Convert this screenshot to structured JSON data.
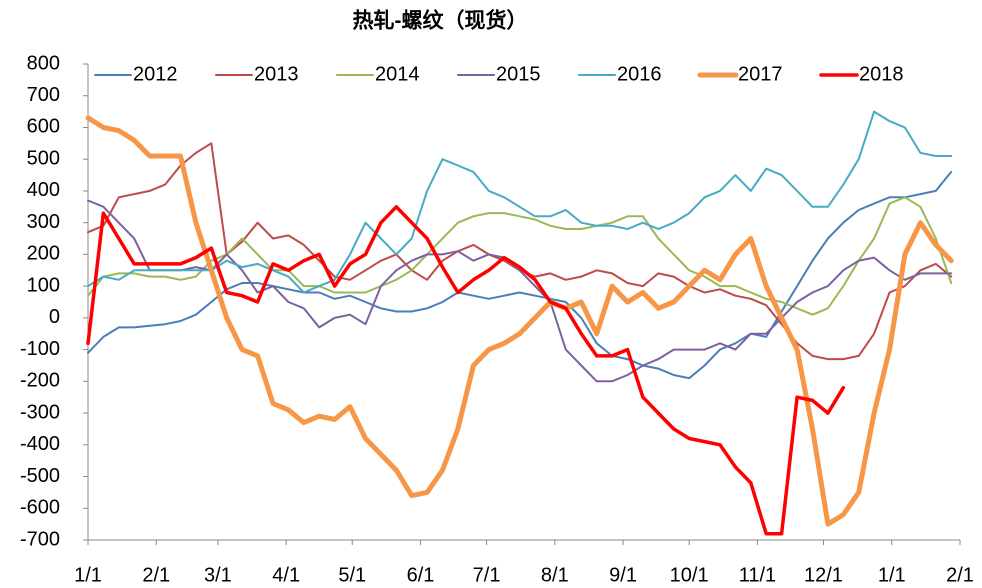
{
  "chart_data": {
    "type": "line",
    "title": "热轧-螺纹（现货）",
    "x": [
      0,
      7,
      14,
      21,
      28,
      35,
      42,
      49,
      56,
      63,
      70,
      77,
      84,
      91,
      98,
      105,
      112,
      119,
      126,
      133,
      140,
      147,
      154,
      161,
      168,
      175,
      182,
      189,
      196,
      203,
      210,
      217,
      224,
      231,
      238,
      245,
      252,
      259,
      266,
      273,
      280,
      287,
      294,
      301,
      308,
      315,
      322,
      329,
      336,
      343,
      350,
      357,
      364,
      371,
      378,
      385,
      392
    ],
    "xlim": [
      0,
      396
    ],
    "xticks": [
      {
        "value": 0,
        "label": "1/1"
      },
      {
        "value": 31,
        "label": "2/1"
      },
      {
        "value": 59,
        "label": "3/1"
      },
      {
        "value": 90,
        "label": "4/1"
      },
      {
        "value": 120,
        "label": "5/1"
      },
      {
        "value": 151,
        "label": "6/1"
      },
      {
        "value": 181,
        "label": "7/1"
      },
      {
        "value": 212,
        "label": "8/1"
      },
      {
        "value": 243,
        "label": "9/1"
      },
      {
        "value": 273,
        "label": "10/1"
      },
      {
        "value": 304,
        "label": "11/1"
      },
      {
        "value": 334,
        "label": "12/1"
      },
      {
        "value": 365,
        "label": "1/1"
      },
      {
        "value": 396,
        "label": "2/1"
      }
    ],
    "ylim": [
      -700,
      800
    ],
    "yticks": [
      800,
      700,
      600,
      500,
      400,
      300,
      200,
      100,
      0,
      -100,
      -200,
      -300,
      -400,
      -500,
      -600,
      -700
    ],
    "grid": false,
    "legend": "top",
    "series": [
      {
        "name": "2012",
        "color": "#4a7ebb",
        "width": 2,
        "values": [
          -110,
          -60,
          -30,
          -30,
          -25,
          -20,
          -10,
          10,
          50,
          90,
          110,
          110,
          100,
          90,
          80,
          80,
          60,
          70,
          50,
          30,
          20,
          20,
          30,
          50,
          80,
          70,
          60,
          70,
          80,
          70,
          60,
          50,
          0,
          -80,
          -120,
          -130,
          -150,
          -160,
          -180,
          -190,
          -150,
          -100,
          -80,
          -50,
          -60,
          20,
          100,
          180,
          250,
          300,
          340,
          360,
          380,
          380,
          390,
          400,
          460
        ]
      },
      {
        "name": "2013",
        "color": "#be4b48",
        "width": 2,
        "values": [
          270,
          290,
          380,
          390,
          400,
          420,
          480,
          520,
          550,
          200,
          240,
          300,
          250,
          260,
          230,
          180,
          130,
          120,
          150,
          180,
          200,
          150,
          120,
          180,
          210,
          230,
          200,
          180,
          150,
          130,
          140,
          120,
          130,
          150,
          140,
          110,
          100,
          140,
          130,
          100,
          80,
          90,
          70,
          60,
          40,
          -20,
          -80,
          -120,
          -130,
          -130,
          -120,
          -50,
          80,
          100,
          150,
          170,
          130
        ]
      },
      {
        "name": "2014",
        "color": "#98b954",
        "width": 2,
        "values": [
          70,
          130,
          140,
          140,
          130,
          130,
          120,
          130,
          180,
          200,
          250,
          200,
          150,
          150,
          100,
          100,
          80,
          80,
          80,
          100,
          120,
          150,
          200,
          250,
          300,
          320,
          330,
          330,
          320,
          310,
          290,
          280,
          280,
          290,
          300,
          320,
          320,
          250,
          200,
          150,
          130,
          100,
          100,
          80,
          60,
          50,
          30,
          10,
          30,
          100,
          180,
          250,
          360,
          380,
          350,
          250,
          110
        ]
      },
      {
        "name": "2015",
        "color": "#7d60a0",
        "width": 2,
        "values": [
          370,
          350,
          300,
          250,
          150,
          150,
          150,
          160,
          150,
          200,
          150,
          80,
          100,
          50,
          30,
          -30,
          0,
          10,
          -20,
          100,
          150,
          180,
          200,
          200,
          210,
          180,
          200,
          190,
          150,
          100,
          50,
          -100,
          -150,
          -200,
          -200,
          -180,
          -150,
          -130,
          -100,
          -100,
          -100,
          -80,
          -100,
          -50,
          -50,
          0,
          50,
          80,
          100,
          150,
          180,
          190,
          150,
          120,
          140,
          140,
          140
        ]
      },
      {
        "name": "2016",
        "color": "#46aac5",
        "width": 2,
        "values": [
          100,
          130,
          120,
          150,
          150,
          150,
          150,
          150,
          150,
          180,
          160,
          170,
          150,
          130,
          80,
          100,
          120,
          200,
          300,
          250,
          200,
          250,
          400,
          500,
          480,
          460,
          400,
          380,
          350,
          320,
          320,
          340,
          300,
          290,
          290,
          280,
          300,
          280,
          300,
          330,
          380,
          400,
          450,
          400,
          470,
          450,
          400,
          350,
          350,
          420,
          500,
          650,
          620,
          600,
          520,
          510,
          510
        ]
      },
      {
        "name": "2017",
        "color": "#f79646",
        "width": 5,
        "values": [
          630,
          600,
          590,
          560,
          510,
          510,
          510,
          300,
          150,
          0,
          -100,
          -120,
          -270,
          -290,
          -330,
          -310,
          -320,
          -280,
          -380,
          -430,
          -480,
          -560,
          -550,
          -480,
          -350,
          -150,
          -100,
          -80,
          -50,
          0,
          50,
          30,
          50,
          -50,
          100,
          50,
          80,
          30,
          50,
          100,
          150,
          120,
          200,
          250,
          100,
          0,
          -100,
          -350,
          -650,
          -620,
          -550,
          -300,
          -100,
          200,
          300,
          230,
          180
        ]
      },
      {
        "name": "2018",
        "color": "#ff0000",
        "width": 3.5,
        "values": [
          -80,
          330,
          250,
          170,
          170,
          170,
          170,
          190,
          220,
          80,
          70,
          50,
          170,
          150,
          180,
          200,
          100,
          170,
          200,
          300,
          350,
          300,
          250,
          160,
          80,
          120,
          150,
          190,
          160,
          120,
          50,
          30,
          -50,
          -120,
          -120,
          -100,
          -250,
          -300,
          -350,
          -380,
          -390,
          -400,
          -470,
          -520,
          -680,
          -680,
          -250,
          -260,
          -300,
          -220,
          null,
          null,
          null,
          null,
          null,
          null,
          null
        ]
      }
    ]
  }
}
